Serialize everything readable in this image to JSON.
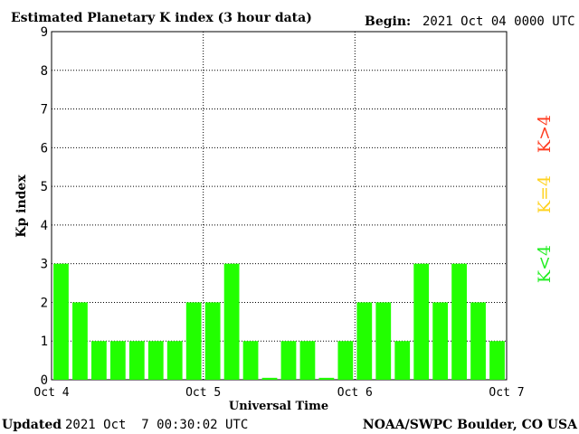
{
  "header": {
    "title": "Estimated Planetary K index (3 hour data)",
    "begin_label": "Begin:",
    "begin_value": "2021 Oct 04 0000 UTC"
  },
  "footer": {
    "updated_label": "Updated",
    "updated_value": "2021 Oct  7 00:30:02 UTC",
    "source": "NOAA/SWPC Boulder, CO USA"
  },
  "legend": [
    {
      "label": "K>4",
      "color": "#ff3b1f"
    },
    {
      "label": "K=4",
      "color": "#ffd21f"
    },
    {
      "label": "K<4",
      "color": "#22ee22"
    }
  ],
  "chart_data": {
    "type": "bar",
    "title": "Estimated Planetary K index (3 hour data)",
    "xlabel": "Universal Time",
    "ylabel": "Kp index",
    "ylim": [
      0,
      9
    ],
    "yticks": [
      0,
      1,
      2,
      3,
      4,
      5,
      6,
      7,
      8,
      9
    ],
    "xticks": [
      "Oct 4",
      "Oct 5",
      "Oct 6",
      "Oct 7"
    ],
    "grid": true,
    "bar_color": "#22ff00",
    "values": [
      3,
      2,
      1,
      1,
      1,
      1,
      1,
      2,
      2,
      3,
      1,
      0.05,
      1,
      1,
      0.05,
      1,
      2,
      2,
      1,
      3,
      2,
      3,
      2,
      1
    ]
  }
}
